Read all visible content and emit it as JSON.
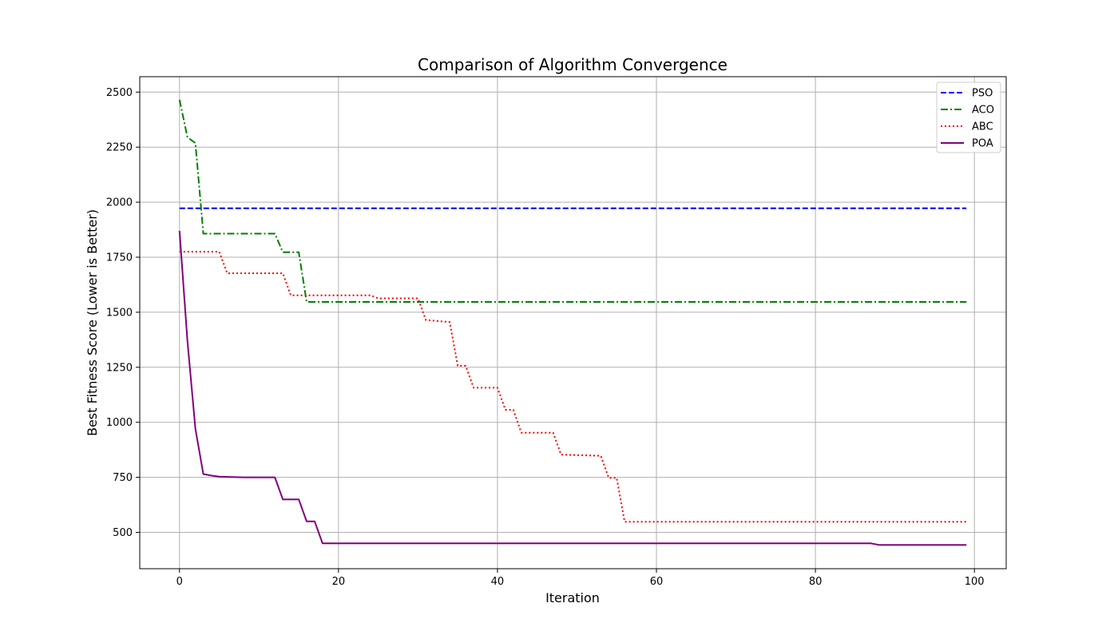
{
  "chart_data": {
    "type": "line",
    "title": "Comparison of Algorithm Convergence",
    "xlabel": "Iteration",
    "ylabel": "Best Fitness Score (Lower is Better)",
    "xlim": [
      -5,
      104
    ],
    "ylim": [
      335,
      2570
    ],
    "xticks": [
      0,
      20,
      40,
      60,
      80,
      100
    ],
    "yticks": [
      500,
      750,
      1000,
      1250,
      1500,
      1750,
      2000,
      2250,
      2500
    ],
    "grid": true,
    "legend_position": "top-right",
    "series": [
      {
        "name": "PSO",
        "color": "#0000ff",
        "dash": "dashed",
        "points": [
          [
            0,
            1972
          ],
          [
            99,
            1972
          ]
        ]
      },
      {
        "name": "ACO",
        "color": "#008000",
        "dash": "dashdot",
        "points": [
          [
            0,
            2465
          ],
          [
            1,
            2295
          ],
          [
            2,
            2268
          ],
          [
            3,
            1857
          ],
          [
            12,
            1857
          ],
          [
            13,
            1773
          ],
          [
            15,
            1773
          ],
          [
            16,
            1547
          ],
          [
            99,
            1547
          ]
        ]
      },
      {
        "name": "ABC",
        "color": "#ff0000",
        "dash": "dotted",
        "points": [
          [
            0,
            1775
          ],
          [
            5,
            1775
          ],
          [
            6,
            1677
          ],
          [
            13,
            1677
          ],
          [
            14,
            1577
          ],
          [
            24,
            1577
          ],
          [
            25,
            1563
          ],
          [
            30,
            1563
          ],
          [
            31,
            1465
          ],
          [
            34,
            1455
          ],
          [
            35,
            1257
          ],
          [
            36,
            1257
          ],
          [
            37,
            1157
          ],
          [
            40,
            1157
          ],
          [
            41,
            1057
          ],
          [
            42,
            1057
          ],
          [
            43,
            953
          ],
          [
            47,
            953
          ],
          [
            48,
            853
          ],
          [
            53,
            848
          ],
          [
            54,
            748
          ],
          [
            55,
            748
          ],
          [
            56,
            548
          ],
          [
            99,
            548
          ]
        ]
      },
      {
        "name": "POA",
        "color": "#800080",
        "dash": "solid",
        "points": [
          [
            0,
            1870
          ],
          [
            1,
            1370
          ],
          [
            2,
            970
          ],
          [
            3,
            765
          ],
          [
            4,
            758
          ],
          [
            5,
            753
          ],
          [
            8,
            750
          ],
          [
            12,
            750
          ],
          [
            13,
            650
          ],
          [
            15,
            650
          ],
          [
            16,
            550
          ],
          [
            17,
            550
          ],
          [
            18,
            450
          ],
          [
            87,
            450
          ],
          [
            88,
            443
          ],
          [
            99,
            443
          ]
        ]
      }
    ]
  }
}
